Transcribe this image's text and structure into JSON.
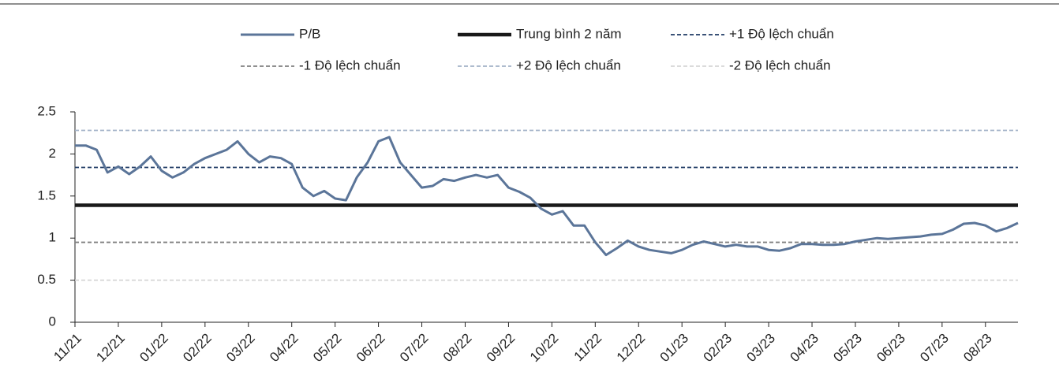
{
  "chart_data": {
    "type": "line",
    "categories": [
      "11/21",
      null,
      null,
      null,
      "12/21",
      null,
      null,
      null,
      "01/22",
      null,
      null,
      null,
      "02/22",
      null,
      null,
      null,
      "03/22",
      null,
      null,
      null,
      "04/22",
      null,
      null,
      null,
      "05/22",
      null,
      null,
      null,
      "06/22",
      null,
      null,
      null,
      "07/22",
      null,
      null,
      null,
      "08/22",
      null,
      null,
      null,
      "09/22",
      null,
      null,
      null,
      "10/22",
      null,
      null,
      null,
      "11/22",
      null,
      null,
      null,
      "12/22",
      null,
      null,
      null,
      "01/23",
      null,
      null,
      null,
      "02/23",
      null,
      null,
      null,
      "03/23",
      null,
      null,
      null,
      "04/23",
      null,
      null,
      null,
      "05/23",
      null,
      null,
      null,
      "06/23",
      null,
      null,
      null,
      "07/23",
      null,
      null,
      null,
      "08/23",
      null,
      null,
      null
    ],
    "series": [
      {
        "name": "P/B",
        "color": "#5b7599",
        "values": [
          2.1,
          2.1,
          2.05,
          1.78,
          1.85,
          1.76,
          1.85,
          1.97,
          1.8,
          1.72,
          1.78,
          1.88,
          1.95,
          2.0,
          2.05,
          2.15,
          2.0,
          1.9,
          1.97,
          1.95,
          1.88,
          1.6,
          1.5,
          1.56,
          1.47,
          1.45,
          1.72,
          1.9,
          2.15,
          2.2,
          1.9,
          1.75,
          1.6,
          1.62,
          1.7,
          1.68,
          1.72,
          1.75,
          1.72,
          1.75,
          1.6,
          1.55,
          1.48,
          1.35,
          1.28,
          1.32,
          1.15,
          1.15,
          0.95,
          0.8,
          0.88,
          0.97,
          0.9,
          0.86,
          0.84,
          0.82,
          0.86,
          0.92,
          0.96,
          0.93,
          0.9,
          0.92,
          0.9,
          0.9,
          0.86,
          0.85,
          0.88,
          0.93,
          0.93,
          0.92,
          0.92,
          0.93,
          0.96,
          0.98,
          1.0,
          0.99,
          1.0,
          1.01,
          1.02,
          1.04,
          1.05,
          1.1,
          1.17,
          1.18,
          1.15,
          1.08,
          1.12,
          1.18
        ]
      }
    ],
    "reference_lines": [
      {
        "name": "Trung bình 2 năm",
        "value": 1.39,
        "color": "#1a1a1a",
        "dashed": false
      },
      {
        "name": "+1 Độ lệch chuẩn",
        "value": 1.84,
        "color": "#1f3a64",
        "dashed": true
      },
      {
        "name": "-1 Độ lệch chuẩn",
        "value": 0.95,
        "color": "#808080",
        "dashed": true
      },
      {
        "name": "+2 Độ lệch chuẩn",
        "value": 2.28,
        "color": "#a3b3c8",
        "dashed": true
      },
      {
        "name": "-2 Độ lệch chuẩn",
        "value": 0.5,
        "color": "#d6d6d6",
        "dashed": true
      }
    ],
    "ylim": [
      0,
      2.5
    ],
    "yticks": [
      0,
      0.5,
      1,
      1.5,
      2,
      2.5
    ]
  }
}
